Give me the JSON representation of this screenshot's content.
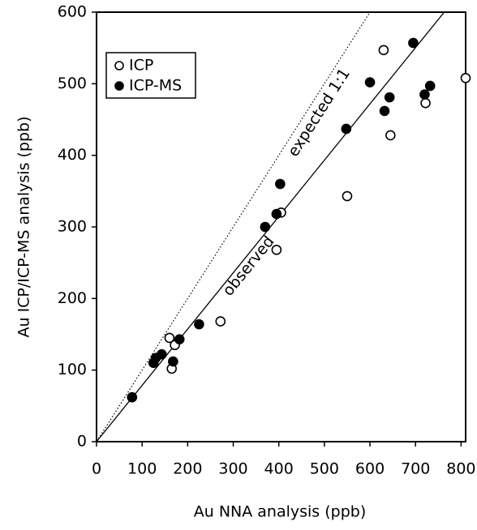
{
  "chart_data": {
    "type": "scatter",
    "x_label": "Au NNA analysis (ppb)",
    "y_label": "Au ICP/ICP-MS analysis (ppb)",
    "xlim": [
      0,
      810
    ],
    "ylim": [
      0,
      600
    ],
    "xticks": [
      0,
      100,
      200,
      300,
      400,
      500,
      600,
      700,
      800
    ],
    "yticks": [
      0,
      100,
      200,
      300,
      400,
      500,
      600
    ],
    "series": [
      {
        "name": "ICP",
        "marker": "open",
        "color": "#000000",
        "x": [
          160,
          165,
          172,
          272,
          395,
          405,
          550,
          630,
          645,
          722,
          810
        ],
        "values": [
          145,
          102,
          135,
          168,
          268,
          320,
          343,
          547,
          428,
          473,
          508
        ]
      },
      {
        "name": "ICP-MS",
        "marker": "filled",
        "color": "#000000",
        "x": [
          78,
          125,
          130,
          143,
          168,
          182,
          225,
          370,
          395,
          403,
          548,
          600,
          632,
          643,
          695,
          720,
          732
        ],
        "values": [
          62,
          110,
          117,
          122,
          112,
          143,
          164,
          300,
          318,
          360,
          437,
          502,
          462,
          481,
          557,
          485,
          497
        ]
      }
    ],
    "lines": [
      {
        "label": "expected 1:1",
        "style": "dotted",
        "x": [
          0,
          600
        ],
        "y": [
          0,
          600
        ]
      },
      {
        "label": "observed",
        "style": "solid",
        "x": [
          0,
          763
        ],
        "y": [
          0,
          600
        ]
      }
    ],
    "legend": "upper left"
  }
}
